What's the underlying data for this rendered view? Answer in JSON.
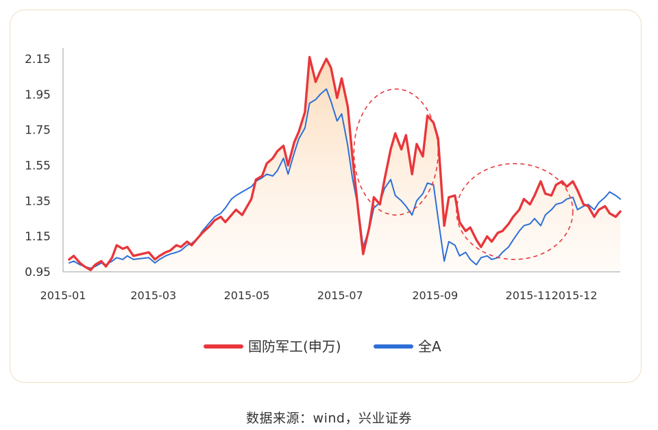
{
  "source_label": "数据来源：wind，兴业证券",
  "colors": {
    "defense": "#e8363b",
    "all_a": "#2d6fd6",
    "fill": "#fbe6d2",
    "ellipse": "#e8363b",
    "axis_text": "#333333"
  },
  "chart_data": {
    "type": "line",
    "title": "",
    "xlabel": "",
    "ylabel": "",
    "ylim": [
      0.95,
      2.25
    ],
    "yticks": [
      0.95,
      1.15,
      1.35,
      1.55,
      1.75,
      1.95,
      2.15
    ],
    "xlim": [
      "2015-01-01",
      "2015-12-31"
    ],
    "xticks": [
      "2015-01",
      "2015-03",
      "2015-05",
      "2015-07",
      "2015-09",
      "2015-11",
      "2015-12"
    ],
    "legend_position": "bottom",
    "grid": false,
    "annotations": [
      {
        "type": "dashed-ellipse",
        "x_range": [
          "2015-07-10",
          "2015-09-03"
        ],
        "y_range": [
          1.27,
          1.98
        ]
      },
      {
        "type": "dashed-ellipse",
        "x_range": [
          "2015-09-15",
          "2015-11-30"
        ],
        "y_range": [
          1.02,
          1.56
        ]
      }
    ],
    "series": [
      {
        "name": "国防军工(申万)",
        "color": "#e8363b",
        "points": [
          [
            "2015-01-05",
            1.02
          ],
          [
            "2015-01-08",
            1.04
          ],
          [
            "2015-01-12",
            1.0
          ],
          [
            "2015-01-15",
            0.98
          ],
          [
            "2015-01-19",
            0.96
          ],
          [
            "2015-01-22",
            0.99
          ],
          [
            "2015-01-26",
            1.01
          ],
          [
            "2015-01-29",
            0.98
          ],
          [
            "2015-02-02",
            1.03
          ],
          [
            "2015-02-05",
            1.1
          ],
          [
            "2015-02-09",
            1.08
          ],
          [
            "2015-02-12",
            1.09
          ],
          [
            "2015-02-16",
            1.04
          ],
          [
            "2015-02-26",
            1.06
          ],
          [
            "2015-03-02",
            1.02
          ],
          [
            "2015-03-05",
            1.04
          ],
          [
            "2015-03-09",
            1.06
          ],
          [
            "2015-03-12",
            1.07
          ],
          [
            "2015-03-16",
            1.1
          ],
          [
            "2015-03-19",
            1.09
          ],
          [
            "2015-03-23",
            1.12
          ],
          [
            "2015-03-26",
            1.1
          ],
          [
            "2015-03-30",
            1.14
          ],
          [
            "2015-04-02",
            1.17
          ],
          [
            "2015-04-07",
            1.21
          ],
          [
            "2015-04-10",
            1.24
          ],
          [
            "2015-04-14",
            1.26
          ],
          [
            "2015-04-17",
            1.23
          ],
          [
            "2015-04-21",
            1.27
          ],
          [
            "2015-04-24",
            1.3
          ],
          [
            "2015-04-28",
            1.27
          ],
          [
            "2015-05-04",
            1.36
          ],
          [
            "2015-05-07",
            1.47
          ],
          [
            "2015-05-11",
            1.49
          ],
          [
            "2015-05-14",
            1.56
          ],
          [
            "2015-05-18",
            1.59
          ],
          [
            "2015-05-21",
            1.63
          ],
          [
            "2015-05-25",
            1.66
          ],
          [
            "2015-05-28",
            1.55
          ],
          [
            "2015-06-01",
            1.68
          ],
          [
            "2015-06-04",
            1.74
          ],
          [
            "2015-06-08",
            1.85
          ],
          [
            "2015-06-11",
            2.16
          ],
          [
            "2015-06-15",
            2.02
          ],
          [
            "2015-06-18",
            2.08
          ],
          [
            "2015-06-22",
            2.15
          ],
          [
            "2015-06-25",
            2.1
          ],
          [
            "2015-06-29",
            1.93
          ],
          [
            "2015-07-02",
            2.04
          ],
          [
            "2015-07-06",
            1.88
          ],
          [
            "2015-07-09",
            1.6
          ],
          [
            "2015-07-13",
            1.28
          ],
          [
            "2015-07-16",
            1.05
          ],
          [
            "2015-07-20",
            1.2
          ],
          [
            "2015-07-23",
            1.37
          ],
          [
            "2015-07-27",
            1.33
          ],
          [
            "2015-07-30",
            1.47
          ],
          [
            "2015-08-03",
            1.64
          ],
          [
            "2015-08-06",
            1.73
          ],
          [
            "2015-08-10",
            1.64
          ],
          [
            "2015-08-13",
            1.72
          ],
          [
            "2015-08-17",
            1.5
          ],
          [
            "2015-08-20",
            1.67
          ],
          [
            "2015-08-24",
            1.6
          ],
          [
            "2015-08-27",
            1.83
          ],
          [
            "2015-08-31",
            1.79
          ],
          [
            "2015-09-03",
            1.7
          ],
          [
            "2015-09-07",
            1.21
          ],
          [
            "2015-09-10",
            1.37
          ],
          [
            "2015-09-14",
            1.38
          ],
          [
            "2015-09-17",
            1.23
          ],
          [
            "2015-09-21",
            1.18
          ],
          [
            "2015-09-24",
            1.2
          ],
          [
            "2015-09-28",
            1.13
          ],
          [
            "2015-10-01",
            1.09
          ],
          [
            "2015-10-05",
            1.15
          ],
          [
            "2015-10-08",
            1.12
          ],
          [
            "2015-10-12",
            1.17
          ],
          [
            "2015-10-15",
            1.18
          ],
          [
            "2015-10-19",
            1.22
          ],
          [
            "2015-10-22",
            1.26
          ],
          [
            "2015-10-26",
            1.3
          ],
          [
            "2015-10-29",
            1.36
          ],
          [
            "2015-11-02",
            1.33
          ],
          [
            "2015-11-05",
            1.38
          ],
          [
            "2015-11-09",
            1.46
          ],
          [
            "2015-11-12",
            1.39
          ],
          [
            "2015-11-16",
            1.38
          ],
          [
            "2015-11-19",
            1.44
          ],
          [
            "2015-11-23",
            1.46
          ],
          [
            "2015-11-26",
            1.43
          ],
          [
            "2015-11-30",
            1.46
          ],
          [
            "2015-12-03",
            1.41
          ],
          [
            "2015-12-07",
            1.33
          ],
          [
            "2015-12-10",
            1.32
          ],
          [
            "2015-12-14",
            1.26
          ],
          [
            "2015-12-17",
            1.3
          ],
          [
            "2015-12-21",
            1.32
          ],
          [
            "2015-12-24",
            1.28
          ],
          [
            "2015-12-28",
            1.26
          ],
          [
            "2015-12-31",
            1.29
          ]
        ]
      },
      {
        "name": "全A",
        "color": "#2d6fd6",
        "points": [
          [
            "2015-01-05",
            1.0
          ],
          [
            "2015-01-08",
            1.01
          ],
          [
            "2015-01-12",
            0.99
          ],
          [
            "2015-01-15",
            0.98
          ],
          [
            "2015-01-19",
            0.97
          ],
          [
            "2015-01-22",
            0.98
          ],
          [
            "2015-01-26",
            1.0
          ],
          [
            "2015-01-29",
            0.99
          ],
          [
            "2015-02-02",
            1.01
          ],
          [
            "2015-02-05",
            1.03
          ],
          [
            "2015-02-09",
            1.02
          ],
          [
            "2015-02-12",
            1.04
          ],
          [
            "2015-02-16",
            1.02
          ],
          [
            "2015-02-26",
            1.03
          ],
          [
            "2015-03-02",
            1.0
          ],
          [
            "2015-03-05",
            1.02
          ],
          [
            "2015-03-09",
            1.04
          ],
          [
            "2015-03-12",
            1.05
          ],
          [
            "2015-03-16",
            1.06
          ],
          [
            "2015-03-19",
            1.07
          ],
          [
            "2015-03-23",
            1.1
          ],
          [
            "2015-03-26",
            1.11
          ],
          [
            "2015-03-30",
            1.14
          ],
          [
            "2015-04-02",
            1.18
          ],
          [
            "2015-04-07",
            1.23
          ],
          [
            "2015-04-10",
            1.26
          ],
          [
            "2015-04-14",
            1.28
          ],
          [
            "2015-04-17",
            1.31
          ],
          [
            "2015-04-21",
            1.36
          ],
          [
            "2015-04-24",
            1.38
          ],
          [
            "2015-04-28",
            1.4
          ],
          [
            "2015-05-04",
            1.43
          ],
          [
            "2015-05-07",
            1.46
          ],
          [
            "2015-05-11",
            1.48
          ],
          [
            "2015-05-14",
            1.5
          ],
          [
            "2015-05-18",
            1.49
          ],
          [
            "2015-05-21",
            1.52
          ],
          [
            "2015-05-25",
            1.59
          ],
          [
            "2015-05-28",
            1.5
          ],
          [
            "2015-06-01",
            1.62
          ],
          [
            "2015-06-04",
            1.7
          ],
          [
            "2015-06-08",
            1.76
          ],
          [
            "2015-06-11",
            1.9
          ],
          [
            "2015-06-15",
            1.92
          ],
          [
            "2015-06-18",
            1.95
          ],
          [
            "2015-06-22",
            1.98
          ],
          [
            "2015-06-25",
            1.91
          ],
          [
            "2015-06-29",
            1.8
          ],
          [
            "2015-07-02",
            1.84
          ],
          [
            "2015-07-06",
            1.66
          ],
          [
            "2015-07-09",
            1.48
          ],
          [
            "2015-07-13",
            1.3
          ],
          [
            "2015-07-16",
            1.09
          ],
          [
            "2015-07-20",
            1.19
          ],
          [
            "2015-07-23",
            1.31
          ],
          [
            "2015-07-27",
            1.34
          ],
          [
            "2015-07-30",
            1.42
          ],
          [
            "2015-08-03",
            1.47
          ],
          [
            "2015-08-06",
            1.38
          ],
          [
            "2015-08-10",
            1.35
          ],
          [
            "2015-08-13",
            1.32
          ],
          [
            "2015-08-17",
            1.27
          ],
          [
            "2015-08-20",
            1.35
          ],
          [
            "2015-08-24",
            1.39
          ],
          [
            "2015-08-27",
            1.45
          ],
          [
            "2015-08-31",
            1.44
          ],
          [
            "2015-09-03",
            1.25
          ],
          [
            "2015-09-07",
            1.01
          ],
          [
            "2015-09-10",
            1.12
          ],
          [
            "2015-09-14",
            1.1
          ],
          [
            "2015-09-17",
            1.04
          ],
          [
            "2015-09-21",
            1.06
          ],
          [
            "2015-09-24",
            1.02
          ],
          [
            "2015-09-28",
            0.99
          ],
          [
            "2015-10-01",
            1.03
          ],
          [
            "2015-10-05",
            1.04
          ],
          [
            "2015-10-08",
            1.02
          ],
          [
            "2015-10-12",
            1.03
          ],
          [
            "2015-10-15",
            1.06
          ],
          [
            "2015-10-19",
            1.09
          ],
          [
            "2015-10-22",
            1.13
          ],
          [
            "2015-10-26",
            1.18
          ],
          [
            "2015-10-29",
            1.21
          ],
          [
            "2015-11-02",
            1.22
          ],
          [
            "2015-11-05",
            1.25
          ],
          [
            "2015-11-09",
            1.21
          ],
          [
            "2015-11-12",
            1.27
          ],
          [
            "2015-11-16",
            1.3
          ],
          [
            "2015-11-19",
            1.33
          ],
          [
            "2015-11-23",
            1.34
          ],
          [
            "2015-11-26",
            1.36
          ],
          [
            "2015-11-30",
            1.37
          ],
          [
            "2015-12-03",
            1.3
          ],
          [
            "2015-12-07",
            1.32
          ],
          [
            "2015-12-10",
            1.33
          ],
          [
            "2015-12-14",
            1.3
          ],
          [
            "2015-12-17",
            1.34
          ],
          [
            "2015-12-21",
            1.37
          ],
          [
            "2015-12-24",
            1.4
          ],
          [
            "2015-12-28",
            1.38
          ],
          [
            "2015-12-31",
            1.36
          ]
        ]
      }
    ]
  }
}
